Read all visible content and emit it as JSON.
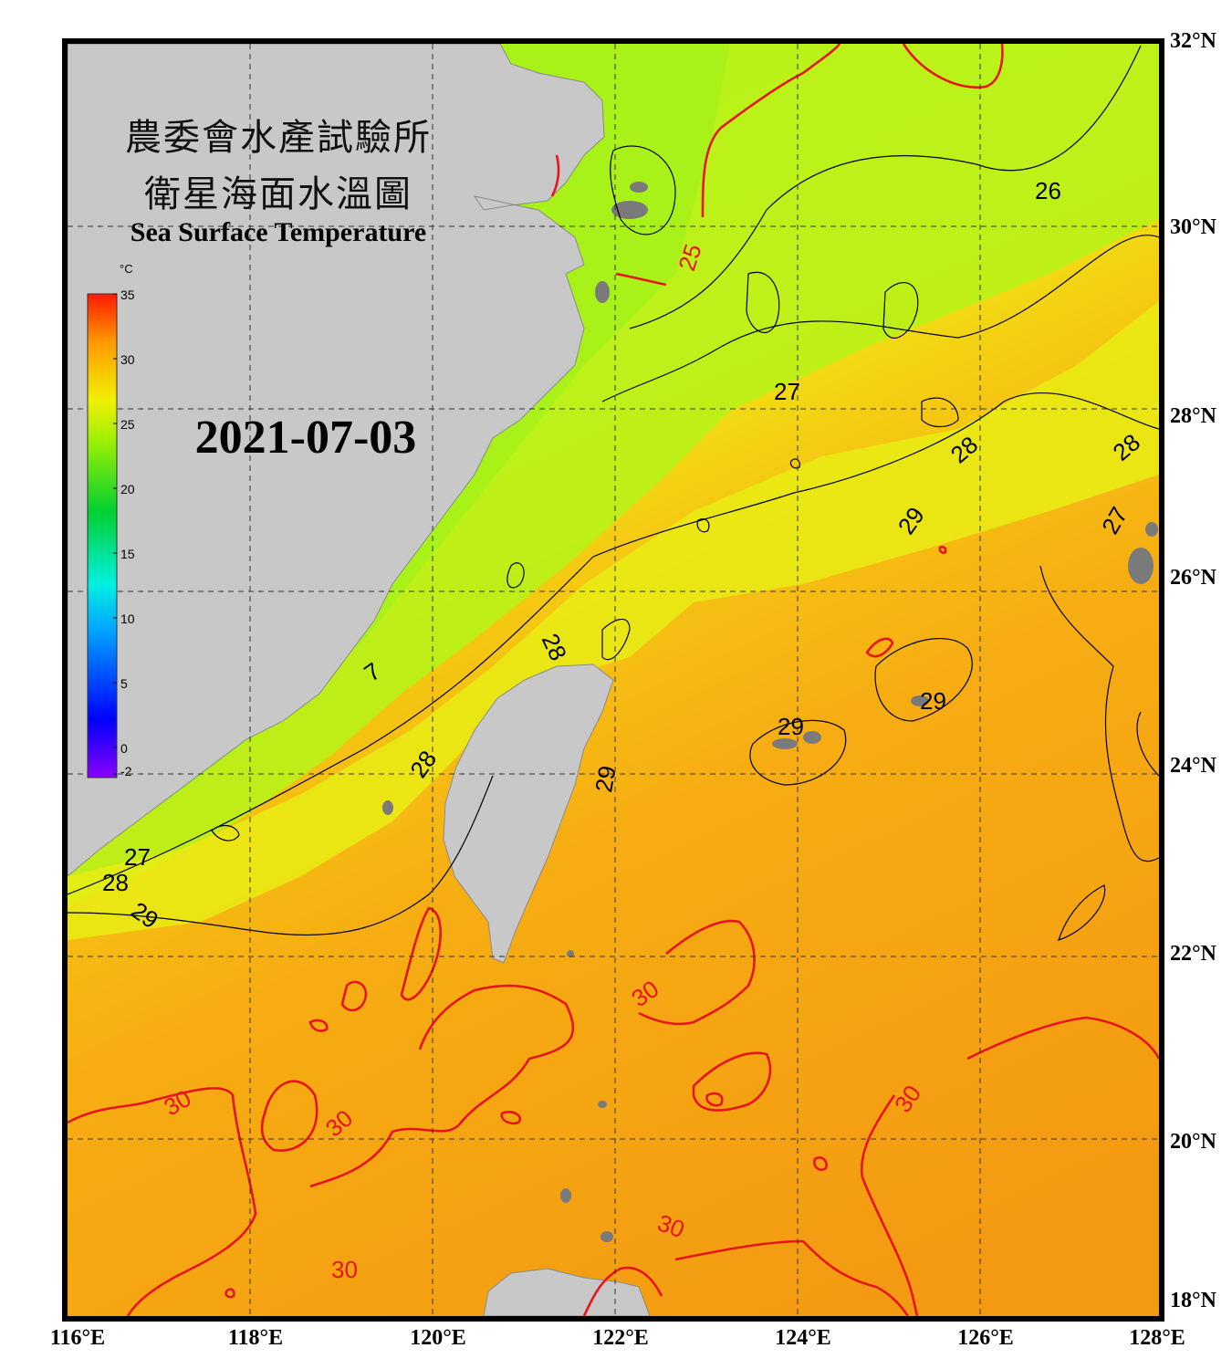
{
  "title": {
    "zh_line1": "農委會水產試驗所",
    "zh_line2": "衛星海面水溫圖",
    "en": "Sea Surface Temperature"
  },
  "date": "2021-07-03",
  "colorbar": {
    "unit": "°C",
    "ticks": [
      "35",
      "30",
      "25",
      "20",
      "15",
      "10",
      "5",
      "0",
      "-2"
    ]
  },
  "axes": {
    "lat_labels": [
      "32°N",
      "30°N",
      "28°N",
      "26°N",
      "24°N",
      "22°N",
      "20°N",
      "18°N"
    ],
    "lon_labels": [
      "116°E",
      "118°E",
      "120°E",
      "122°E",
      "124°E",
      "126°E",
      "128°E"
    ]
  },
  "contour_labels": {
    "c25": "25",
    "c26": "26",
    "c27a": "27",
    "c27b": "27",
    "c27c": "7",
    "c27d": "27",
    "c28a": "28",
    "c28b": "28",
    "c28c": "28",
    "c28d": "28",
    "c28e": "28",
    "c29a": "29",
    "c29b": "29",
    "c29c": "29",
    "c29d": "29",
    "c29e": "29",
    "c30a": "30",
    "c30b": "30",
    "c30c": "30",
    "c30d": "30",
    "c30e": "30",
    "c30f": "30"
  },
  "colors": {
    "land": "#c8c8c8",
    "island": "#7a7a7a",
    "contour_30_25": "#e8141c",
    "contour_other": "#000000",
    "warm_sea": "#f7a812",
    "cool_sea": "#b8f010"
  }
}
